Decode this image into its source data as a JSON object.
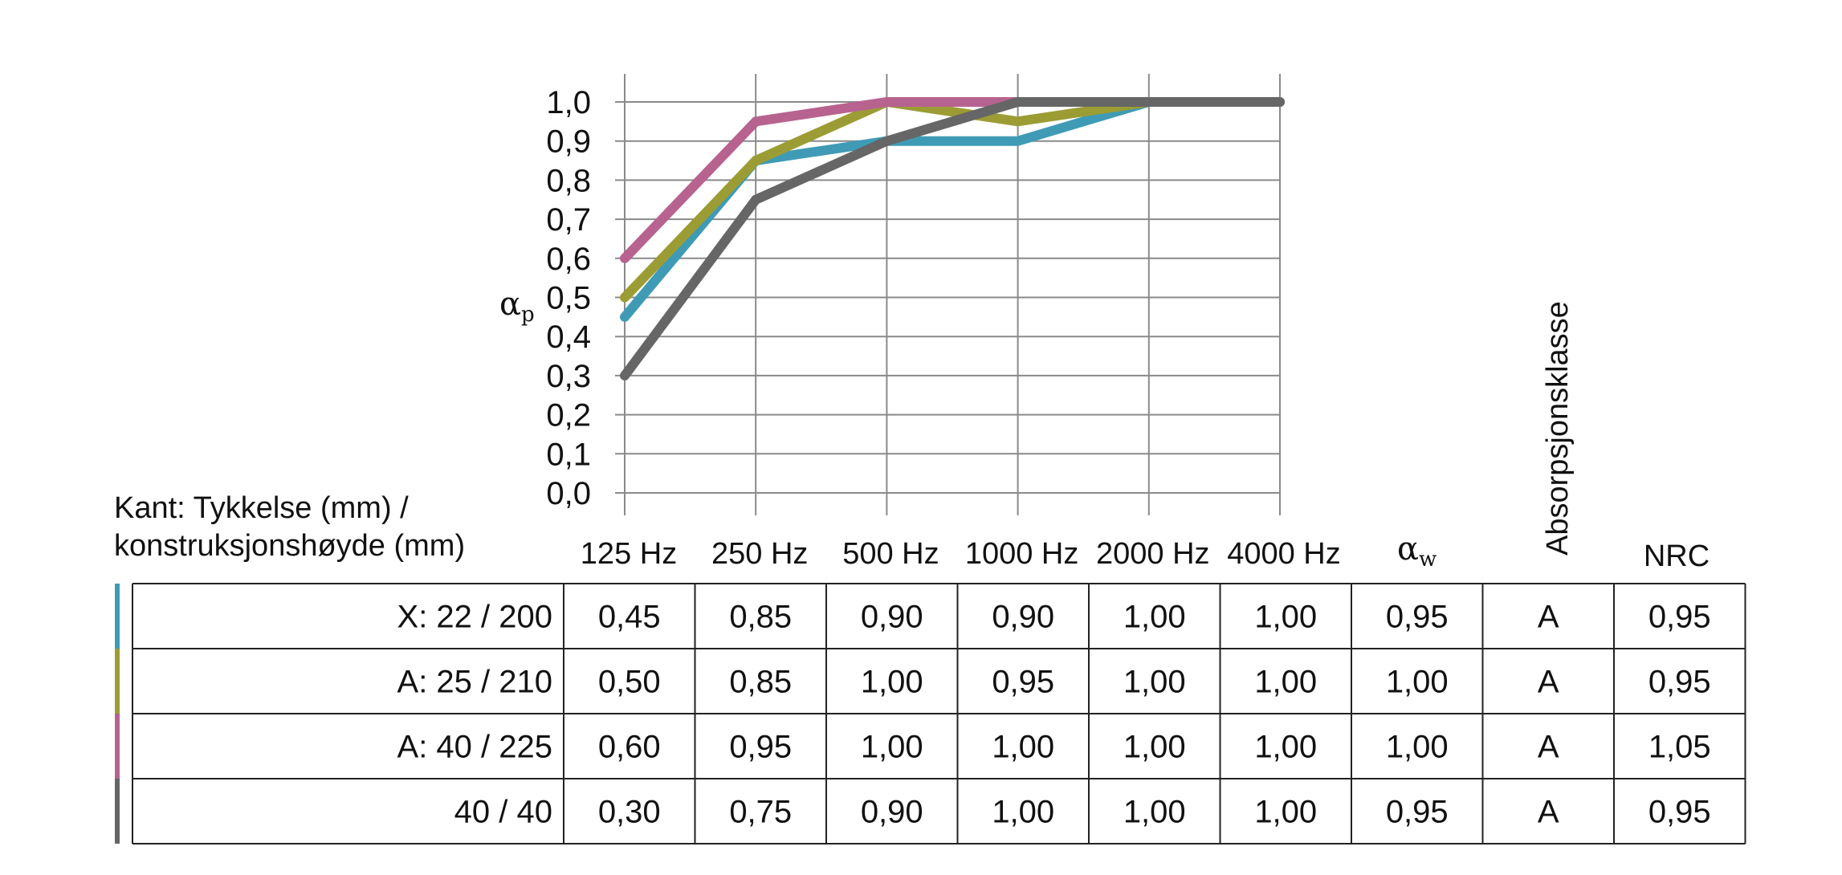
{
  "chart_data": {
    "type": "line",
    "ylabel": "α",
    "ylabel_sub": "p",
    "ylim": [
      0,
      1
    ],
    "yticks": [
      "0,0",
      "0,1",
      "0,2",
      "0,3",
      "0,4",
      "0,5",
      "0,6",
      "0,7",
      "0,8",
      "0,9",
      "1,0"
    ],
    "categories": [
      "125 Hz",
      "250 Hz",
      "500 Hz",
      "1000 Hz",
      "2000 Hz",
      "4000 Hz"
    ],
    "grid": true,
    "series": [
      {
        "name": "X: 22 / 200",
        "color": "#3f9bb5",
        "values": [
          0.45,
          0.85,
          0.9,
          0.9,
          1.0,
          1.0
        ]
      },
      {
        "name": "A: 25 / 210",
        "color": "#9c9c35",
        "values": [
          0.5,
          0.85,
          1.0,
          0.95,
          1.0,
          1.0
        ]
      },
      {
        "name": "A: 40 / 225",
        "color": "#b7628f",
        "values": [
          0.6,
          0.95,
          1.0,
          1.0,
          1.0,
          1.0
        ]
      },
      {
        "name": "40 / 40",
        "color": "#666666",
        "values": [
          0.3,
          0.75,
          0.9,
          1.0,
          1.0,
          1.0
        ]
      }
    ]
  },
  "table": {
    "row_label_header": [
      "Kant: Tykkelse (mm) /",
      "konstruksjonshøyde (mm)"
    ],
    "aw_header": "α",
    "aw_header_sub": "w",
    "class_header": "Absorpsjonsklasse",
    "nrc_header": "NRC",
    "rows": [
      {
        "label": "X: 22 / 200",
        "values": [
          "0,45",
          "0,85",
          "0,90",
          "0,90",
          "1,00",
          "1,00"
        ],
        "aw": "0,95",
        "cls": "A",
        "nrc": "0,95"
      },
      {
        "label": "A: 25 / 210",
        "values": [
          "0,50",
          "0,85",
          "1,00",
          "0,95",
          "1,00",
          "1,00"
        ],
        "aw": "1,00",
        "cls": "A",
        "nrc": "0,95"
      },
      {
        "label": "A: 40 / 225",
        "values": [
          "0,60",
          "0,95",
          "1,00",
          "1,00",
          "1,00",
          "1,00"
        ],
        "aw": "1,00",
        "cls": "A",
        "nrc": "1,05"
      },
      {
        "label": "40 / 40",
        "values": [
          "0,30",
          "0,75",
          "0,90",
          "1,00",
          "1,00",
          "1,00"
        ],
        "aw": "0,95",
        "cls": "A",
        "nrc": "0,95"
      }
    ]
  }
}
